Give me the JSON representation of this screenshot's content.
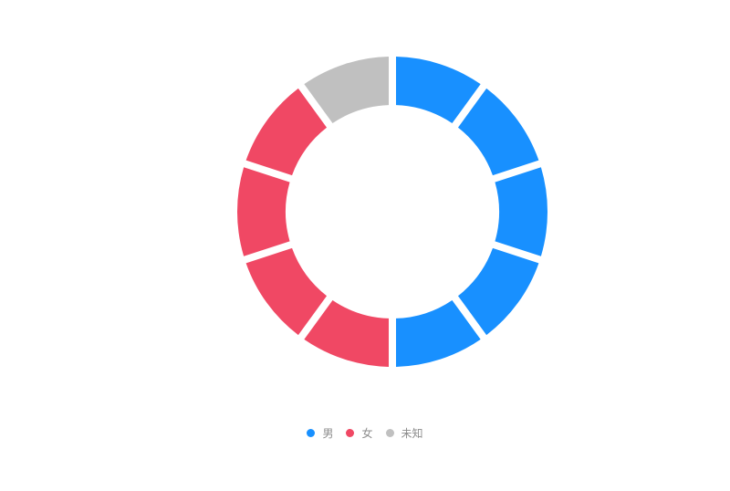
{
  "chart_data": {
    "type": "pie",
    "variant": "donut",
    "segments_per_unit": 1,
    "slices": [
      {
        "series": "男",
        "value": 1,
        "color": "#1890FF"
      },
      {
        "series": "男",
        "value": 1,
        "color": "#1890FF"
      },
      {
        "series": "男",
        "value": 1,
        "color": "#1890FF"
      },
      {
        "series": "男",
        "value": 1,
        "color": "#1890FF"
      },
      {
        "series": "男",
        "value": 1,
        "color": "#1890FF"
      },
      {
        "series": "女",
        "value": 1,
        "color": "#F04864"
      },
      {
        "series": "女",
        "value": 1,
        "color": "#F04864"
      },
      {
        "series": "女",
        "value": 1,
        "color": "#F04864"
      },
      {
        "series": "女",
        "value": 1,
        "color": "#F04864"
      },
      {
        "series": "未知",
        "value": 1,
        "color": "#C0C0C0"
      }
    ],
    "series_totals": [
      {
        "name": "男",
        "count": 5
      },
      {
        "name": "女",
        "count": 4
      },
      {
        "name": "未知",
        "count": 1
      }
    ],
    "legend": {
      "position": "bottom",
      "items": [
        {
          "label": "男",
          "color": "#1890FF"
        },
        {
          "label": "女",
          "color": "#F04864"
        },
        {
          "label": "未知",
          "color": "#C0C0C0"
        }
      ]
    }
  }
}
